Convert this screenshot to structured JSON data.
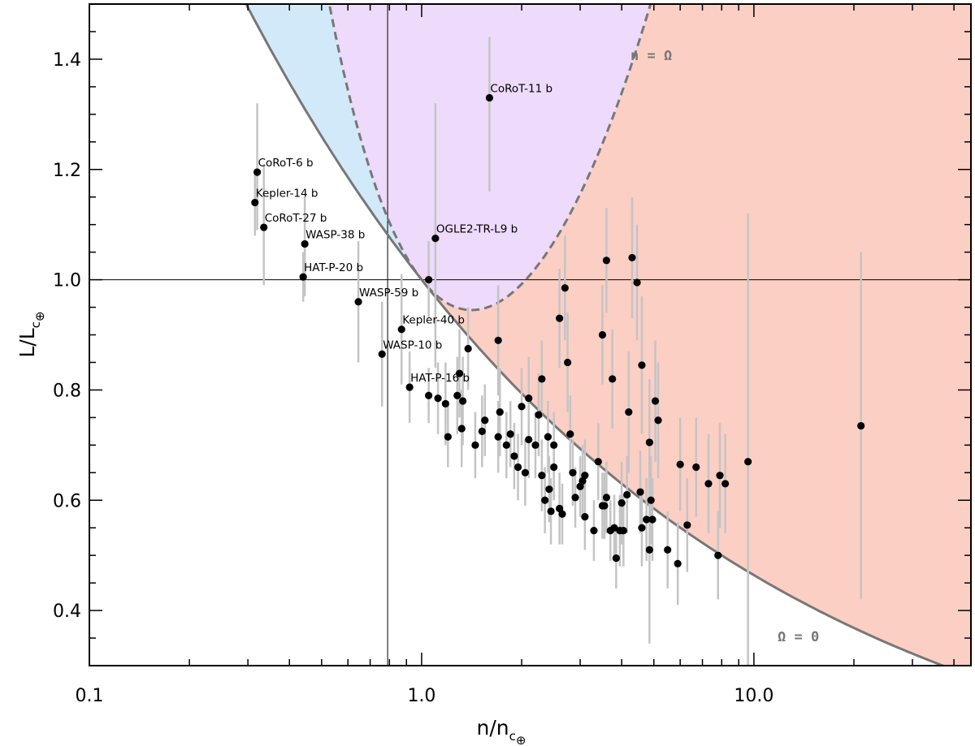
{
  "chart_data": {
    "type": "scatter",
    "xscale": "log",
    "xlim": [
      0.1,
      45
    ],
    "ylim": [
      0.3,
      1.5
    ],
    "xlabel_base": "n/n",
    "xlabel_sub": "c",
    "xlabel_subsub": "⊕",
    "ylabel_base": "L/L",
    "ylabel_sub": "c",
    "ylabel_subsub": "⊕",
    "x_ticks": [
      {
        "value": 0.1,
        "label": "0.1"
      },
      {
        "value": 1.0,
        "label": "1.0"
      },
      {
        "value": 10.0,
        "label": "10.0"
      }
    ],
    "y_ticks": [
      {
        "value": 0.4,
        "label": "0.4"
      },
      {
        "value": 0.6,
        "label": "0.6"
      },
      {
        "value": 0.8,
        "label": "0.8"
      },
      {
        "value": 1.0,
        "label": "1.0"
      },
      {
        "value": 1.2,
        "label": "1.2"
      },
      {
        "value": 1.4,
        "label": "1.4"
      }
    ],
    "reference_lines": {
      "x": 0.79,
      "y": 1.0
    },
    "curve_labels": {
      "upper": "n = Ω",
      "lower": "Ω = 0"
    },
    "colors": {
      "purple_region": "#eedafb",
      "blue_region": "#d2e9fa",
      "salmon_region": "#fccfc4",
      "curve": "#777777",
      "error_bar": "#c4c4c4",
      "point": "#000000"
    },
    "labeled_points": [
      {
        "name": "CoRoT-11 b",
        "x": 1.6,
        "y": 1.33,
        "ylo": 1.16,
        "yhi": 1.44
      },
      {
        "name": "CoRoT-6 b",
        "x": 0.32,
        "y": 1.195,
        "ylo": 1.09,
        "yhi": 1.32
      },
      {
        "name": "Kepler-14 b",
        "x": 0.315,
        "y": 1.14,
        "ylo": 1.08,
        "yhi": 1.2
      },
      {
        "name": "CoRoT-27 b",
        "x": 0.335,
        "y": 1.095,
        "ylo": 0.99,
        "yhi": 1.21
      },
      {
        "name": "WASP-38 b",
        "x": 0.445,
        "y": 1.065,
        "ylo": 0.97,
        "yhi": 1.15
      },
      {
        "name": "OGLE2-TR-L9 b",
        "x": 1.1,
        "y": 1.075,
        "ylo": 0.84,
        "yhi": 1.32
      },
      {
        "name": "HAT-P-20 b",
        "x": 0.44,
        "y": 1.005,
        "ylo": 0.96,
        "yhi": 1.05
      },
      {
        "name": "WASP-59 b",
        "x": 0.645,
        "y": 0.96,
        "ylo": 0.85,
        "yhi": 1.07
      },
      {
        "name": "Kepler-40 b",
        "x": 0.87,
        "y": 0.91,
        "ylo": 0.81,
        "yhi": 1.01
      },
      {
        "name": "WASP-10 b",
        "x": 0.76,
        "y": 0.865,
        "ylo": 0.77,
        "yhi": 0.96
      },
      {
        "name": "HAT-P-16 b",
        "x": 0.92,
        "y": 0.805,
        "ylo": 0.74,
        "yhi": 0.87
      }
    ],
    "points": [
      [
        1.05,
        1.0,
        0.93,
        1.07
      ],
      [
        1.05,
        0.79,
        0.74,
        0.84
      ],
      [
        1.12,
        0.785,
        0.72,
        0.85
      ],
      [
        1.18,
        0.775,
        0.7,
        0.85
      ],
      [
        1.2,
        0.715,
        0.66,
        0.78
      ],
      [
        1.28,
        0.79,
        0.72,
        0.86
      ],
      [
        1.3,
        0.83,
        0.75,
        0.91
      ],
      [
        1.33,
        0.78,
        0.7,
        0.86
      ],
      [
        1.32,
        0.73,
        0.66,
        0.8
      ],
      [
        1.38,
        0.875,
        0.8,
        0.95
      ],
      [
        1.45,
        0.7,
        0.64,
        0.76
      ],
      [
        1.52,
        0.725,
        0.66,
        0.79
      ],
      [
        1.55,
        0.745,
        0.68,
        0.81
      ],
      [
        1.7,
        0.89,
        0.79,
        0.99
      ],
      [
        1.72,
        0.76,
        0.68,
        0.84
      ],
      [
        1.7,
        0.715,
        0.65,
        0.78
      ],
      [
        1.8,
        0.7,
        0.64,
        0.76
      ],
      [
        1.85,
        0.72,
        0.66,
        0.78
      ],
      [
        1.9,
        0.68,
        0.62,
        0.74
      ],
      [
        1.95,
        0.66,
        0.6,
        0.72
      ],
      [
        2.0,
        0.77,
        0.7,
        0.84
      ],
      [
        2.05,
        0.65,
        0.59,
        0.71
      ],
      [
        2.1,
        0.785,
        0.71,
        0.86
      ],
      [
        2.1,
        0.71,
        0.64,
        0.78
      ],
      [
        2.2,
        0.7,
        0.64,
        0.76
      ],
      [
        2.25,
        0.755,
        0.68,
        0.83
      ],
      [
        2.3,
        0.82,
        0.75,
        0.89
      ],
      [
        2.3,
        0.645,
        0.58,
        0.71
      ],
      [
        2.35,
        0.6,
        0.54,
        0.66
      ],
      [
        2.4,
        0.715,
        0.65,
        0.78
      ],
      [
        2.42,
        0.62,
        0.56,
        0.68
      ],
      [
        2.45,
        0.58,
        0.52,
        0.64
      ],
      [
        2.5,
        0.7,
        0.64,
        0.76
      ],
      [
        2.5,
        0.66,
        0.6,
        0.72
      ],
      [
        2.6,
        0.585,
        0.52,
        0.65
      ],
      [
        2.65,
        0.575,
        0.52,
        0.63
      ],
      [
        2.6,
        0.93,
        0.84,
        1.02
      ],
      [
        2.7,
        0.985,
        0.89,
        1.08
      ],
      [
        2.75,
        0.85,
        0.76,
        0.94
      ],
      [
        2.8,
        0.72,
        0.65,
        0.79
      ],
      [
        2.85,
        0.65,
        0.59,
        0.71
      ],
      [
        2.9,
        0.605,
        0.55,
        0.66
      ],
      [
        3.0,
        0.625,
        0.57,
        0.68
      ],
      [
        3.05,
        0.635,
        0.57,
        0.7
      ],
      [
        3.1,
        0.645,
        0.58,
        0.71
      ],
      [
        3.1,
        0.57,
        0.51,
        0.63
      ],
      [
        3.3,
        0.545,
        0.49,
        0.6
      ],
      [
        3.4,
        0.67,
        0.6,
        0.74
      ],
      [
        3.5,
        0.9,
        0.81,
        0.99
      ],
      [
        3.5,
        0.59,
        0.53,
        0.65
      ],
      [
        3.55,
        0.59,
        0.53,
        0.65
      ],
      [
        3.6,
        1.035,
        0.94,
        1.13
      ],
      [
        3.6,
        0.605,
        0.54,
        0.67
      ],
      [
        3.7,
        0.545,
        0.49,
        0.6
      ],
      [
        3.75,
        0.82,
        0.73,
        0.91
      ],
      [
        3.8,
        0.55,
        0.49,
        0.61
      ],
      [
        3.85,
        0.495,
        0.44,
        0.55
      ],
      [
        3.95,
        0.545,
        0.48,
        0.61
      ],
      [
        4.0,
        0.595,
        0.52,
        0.67
      ],
      [
        4.05,
        0.545,
        0.48,
        0.61
      ],
      [
        4.15,
        0.61,
        0.54,
        0.68
      ],
      [
        4.2,
        0.76,
        0.65,
        0.87
      ],
      [
        4.3,
        1.04,
        0.93,
        1.15
      ],
      [
        4.45,
        0.995,
        0.89,
        1.1
      ],
      [
        4.55,
        0.615,
        0.54,
        0.69
      ],
      [
        4.6,
        0.55,
        0.48,
        0.62
      ],
      [
        4.6,
        0.845,
        0.72,
        0.97
      ],
      [
        4.75,
        0.565,
        0.49,
        0.64
      ],
      [
        4.85,
        0.705,
        0.59,
        0.82
      ],
      [
        4.85,
        0.51,
        0.34,
        0.68
      ],
      [
        4.9,
        0.6,
        0.52,
        0.68
      ],
      [
        4.95,
        0.565,
        0.49,
        0.64
      ],
      [
        5.05,
        0.78,
        0.67,
        0.89
      ],
      [
        5.15,
        0.745,
        0.64,
        0.85
      ],
      [
        5.5,
        0.51,
        0.44,
        0.58
      ],
      [
        5.9,
        0.485,
        0.41,
        0.56
      ],
      [
        6.0,
        0.665,
        0.58,
        0.75
      ],
      [
        6.3,
        0.555,
        0.47,
        0.64
      ],
      [
        6.7,
        0.66,
        0.57,
        0.75
      ],
      [
        7.3,
        0.63,
        0.54,
        0.72
      ],
      [
        7.8,
        0.5,
        0.42,
        0.58
      ],
      [
        7.9,
        0.645,
        0.55,
        0.74
      ],
      [
        8.2,
        0.63,
        0.54,
        0.72
      ],
      [
        9.6,
        0.67,
        0.3,
        1.12
      ],
      [
        21.0,
        0.735,
        0.42,
        1.05
      ]
    ]
  }
}
